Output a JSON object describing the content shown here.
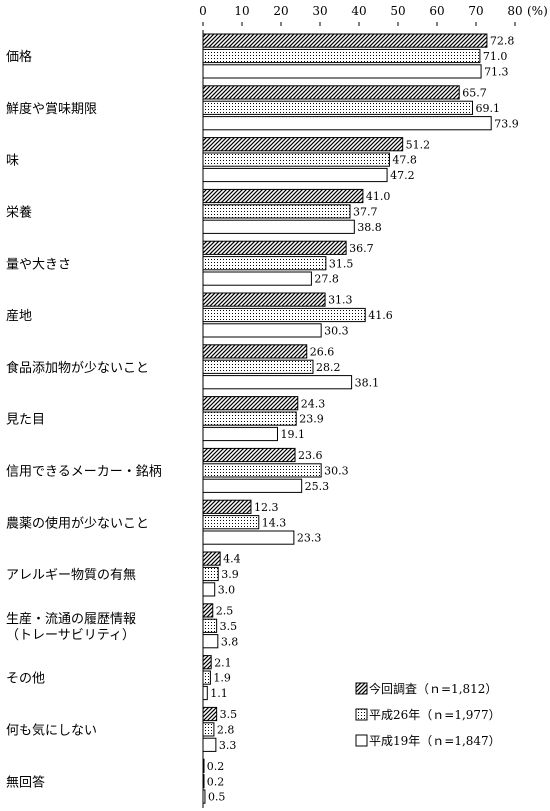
{
  "chart_data": {
    "type": "bar",
    "orientation": "horizontal",
    "xlim": [
      0,
      80
    ],
    "ticks": [
      0,
      10,
      20,
      30,
      40,
      50,
      60,
      70,
      80
    ],
    "unit_label": "(%)",
    "grid": false,
    "legend_position": "bottom-right",
    "categories": [
      "価格",
      "鮮度や賞味期限",
      "味",
      "栄養",
      "量や大きさ",
      "産地",
      "食品添加物が少ないこと",
      "見た目",
      "信用できるメーカー・銘柄",
      "農薬の使用が少ないこと",
      "アレルギー物質の有無",
      "生産・流通の履歴情報\n（トレーサビリティ）",
      "その他",
      "何も気にしない",
      "無回答"
    ],
    "series": [
      {
        "name": "今回調査（ｎ=1,812）",
        "pattern": "hatch",
        "values": [
          72.8,
          65.7,
          51.2,
          41.0,
          36.7,
          31.3,
          26.6,
          24.3,
          23.6,
          12.3,
          4.4,
          2.5,
          2.1,
          3.5,
          0.2
        ]
      },
      {
        "name": "平成26年（ｎ=1,977）",
        "pattern": "dots",
        "values": [
          71.0,
          69.1,
          47.8,
          37.7,
          31.5,
          41.6,
          28.2,
          23.9,
          30.3,
          14.3,
          3.9,
          3.5,
          1.9,
          2.8,
          0.2
        ]
      },
      {
        "name": "平成19年（ｎ=1,847）",
        "pattern": "white",
        "values": [
          71.3,
          73.9,
          47.2,
          38.8,
          27.8,
          30.3,
          38.1,
          19.1,
          25.3,
          23.3,
          3.0,
          3.8,
          1.1,
          3.3,
          0.5
        ]
      }
    ]
  }
}
